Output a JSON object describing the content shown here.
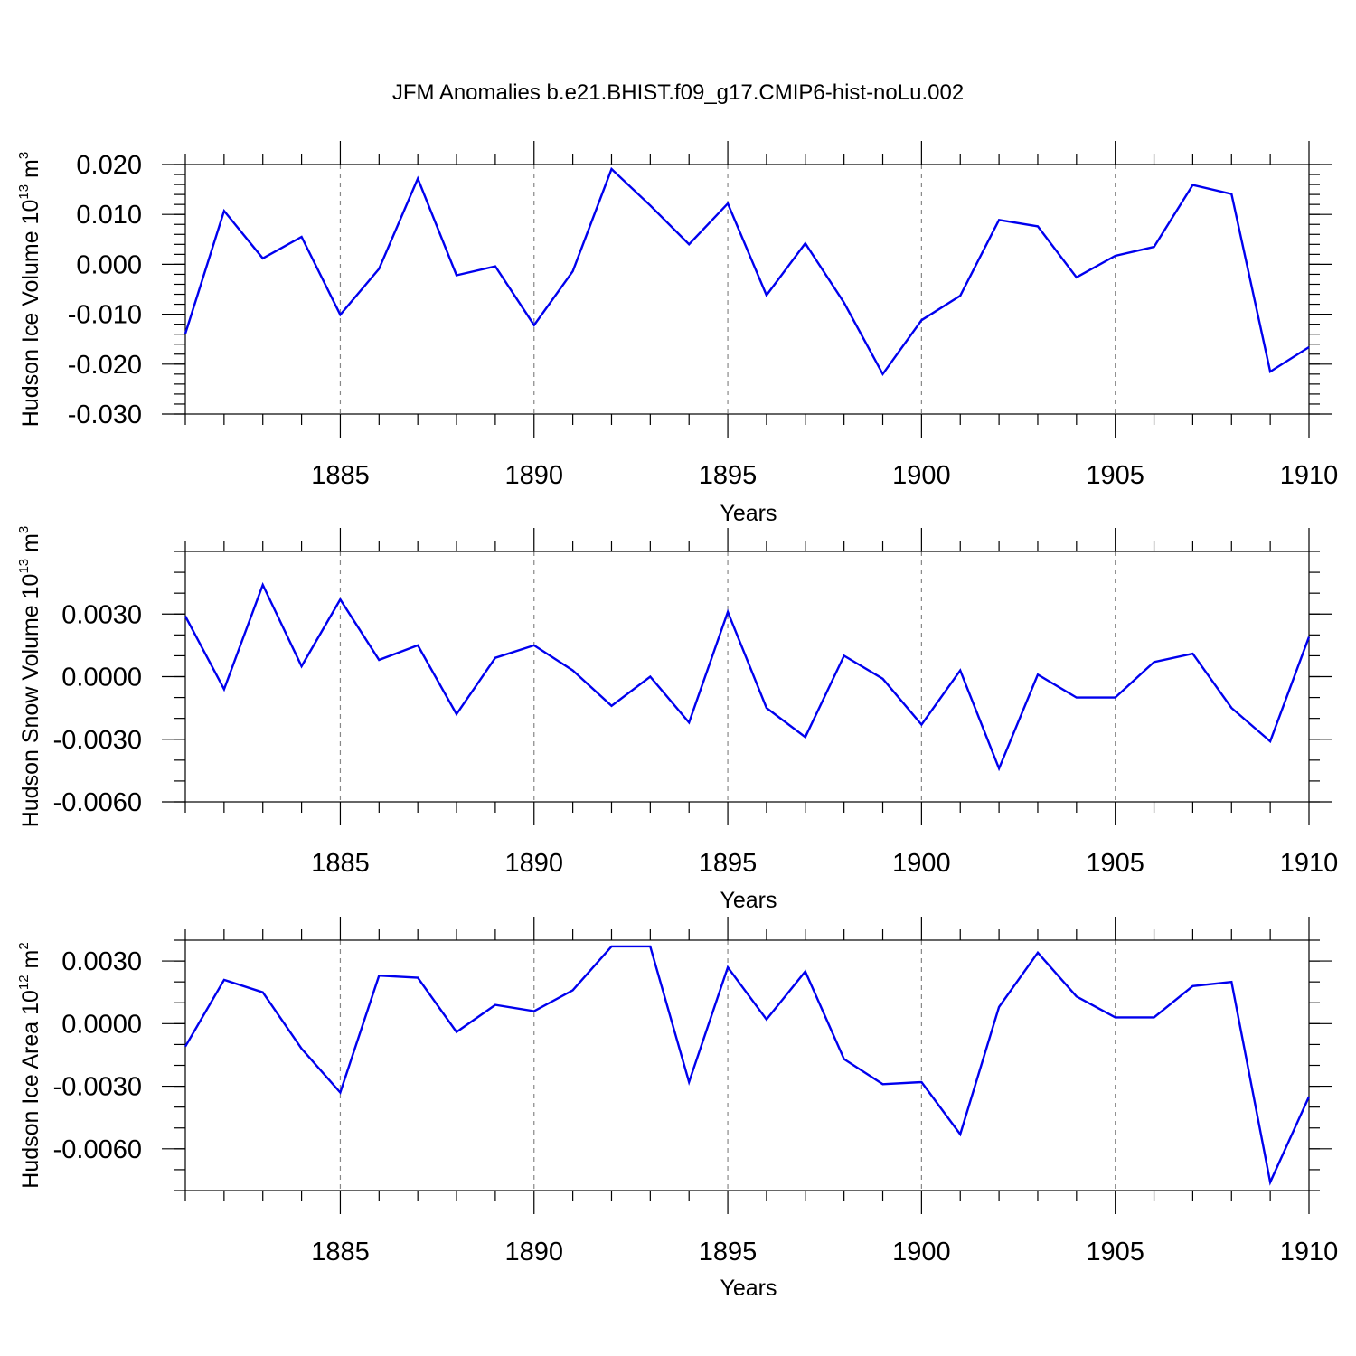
{
  "title": "JFM Anomalies b.e21.BHIST.f09_g17.CMIP6-hist-noLu.002",
  "line_color": "#0000ee",
  "chart_data": [
    {
      "type": "line",
      "ylabel": "Hudson Ice Volume 10",
      "ylabel_exp": "13",
      "ylabel_unit": " m",
      "ylabel_unit_exp": "3",
      "xlabel": "Years",
      "xlim": [
        1881,
        1910
      ],
      "ylim": [
        -0.03,
        0.02
      ],
      "yticks": [
        0.02,
        0.01,
        0.0,
        -0.01,
        -0.02,
        -0.03
      ],
      "ytick_labels": [
        "0.020",
        "0.010",
        "0.000",
        "-0.010",
        "-0.020",
        "-0.030"
      ],
      "yminor_step": 0.002,
      "xticks": [
        1885,
        1890,
        1895,
        1900,
        1905,
        1910
      ],
      "xtick_labels": [
        "1885",
        "1890",
        "1895",
        "1900",
        "1905",
        "1910"
      ],
      "grid": "vertical dashed at major x ticks",
      "x": [
        1881,
        1882,
        1883,
        1884,
        1885,
        1886,
        1887,
        1888,
        1889,
        1890,
        1891,
        1892,
        1893,
        1894,
        1895,
        1896,
        1897,
        1898,
        1899,
        1900,
        1901,
        1902,
        1903,
        1904,
        1905,
        1906,
        1907,
        1908,
        1909,
        1910
      ],
      "y": [
        -0.0139,
        0.0107,
        0.0012,
        0.0055,
        -0.0101,
        -0.0009,
        0.0172,
        -0.0022,
        -0.0004,
        -0.0122,
        -0.0014,
        0.0191,
        0.0118,
        0.004,
        0.0122,
        -0.0062,
        0.0042,
        -0.0077,
        -0.022,
        -0.0112,
        -0.0063,
        0.0089,
        0.0076,
        -0.0026,
        0.0017,
        0.0035,
        0.0159,
        0.0141,
        -0.0215,
        -0.0166
      ]
    },
    {
      "type": "line",
      "ylabel": "Hudson Snow Volume 10",
      "ylabel_exp": "13",
      "ylabel_unit": " m",
      "ylabel_unit_exp": "3",
      "xlabel": "Years",
      "xlim": [
        1881,
        1910
      ],
      "ylim": [
        -0.006,
        0.006
      ],
      "yticks": [
        0.003,
        0.0,
        -0.003,
        -0.006
      ],
      "ytick_labels": [
        "0.0030",
        "0.0000",
        "-0.0030",
        "-0.0060"
      ],
      "yminor_step": 0.001,
      "xticks": [
        1885,
        1890,
        1895,
        1900,
        1905,
        1910
      ],
      "xtick_labels": [
        "1885",
        "1890",
        "1895",
        "1900",
        "1905",
        "1910"
      ],
      "grid": "vertical dashed at major x ticks",
      "x": [
        1881,
        1882,
        1883,
        1884,
        1885,
        1886,
        1887,
        1888,
        1889,
        1890,
        1891,
        1892,
        1893,
        1894,
        1895,
        1896,
        1897,
        1898,
        1899,
        1900,
        1901,
        1902,
        1903,
        1904,
        1905,
        1906,
        1907,
        1908,
        1909,
        1910
      ],
      "y": [
        0.0029,
        -0.0006,
        0.0044,
        0.0005,
        0.0037,
        0.0008,
        0.0015,
        -0.0018,
        0.0009,
        0.0015,
        0.0003,
        -0.0014,
        -0.0,
        -0.0022,
        0.0031,
        -0.0015,
        -0.0029,
        0.001,
        -0.0001,
        -0.0023,
        0.0003,
        -0.0044,
        0.0001,
        -0.001,
        -0.001,
        0.0007,
        0.0011,
        -0.0015,
        -0.0031,
        0.0019
      ]
    },
    {
      "type": "line",
      "ylabel": "Hudson Ice Area 10",
      "ylabel_exp": "12",
      "ylabel_unit": " m",
      "ylabel_unit_exp": "2",
      "xlabel": "Years",
      "xlim": [
        1881,
        1910
      ],
      "ylim": [
        -0.008,
        0.004
      ],
      "yticks": [
        0.003,
        0.0,
        -0.003,
        -0.006
      ],
      "ytick_labels": [
        "0.0030",
        "0.0000",
        "-0.0030",
        "-0.0060"
      ],
      "yminor_step": 0.001,
      "xticks": [
        1885,
        1890,
        1895,
        1900,
        1905,
        1910
      ],
      "xtick_labels": [
        "1885",
        "1890",
        "1895",
        "1900",
        "1905",
        "1910"
      ],
      "grid": "vertical dashed at major x ticks",
      "x": [
        1881,
        1882,
        1883,
        1884,
        1885,
        1886,
        1887,
        1888,
        1889,
        1890,
        1891,
        1892,
        1893,
        1894,
        1895,
        1896,
        1897,
        1898,
        1899,
        1900,
        1901,
        1902,
        1903,
        1904,
        1905,
        1906,
        1907,
        1908,
        1909,
        1910
      ],
      "y": [
        -0.0011,
        0.0021,
        0.0015,
        -0.0012,
        -0.0033,
        0.0023,
        0.0022,
        -0.0004,
        0.0009,
        0.0006,
        0.0016,
        0.0037,
        0.0037,
        -0.0028,
        0.0027,
        0.0002,
        0.0025,
        -0.0017,
        -0.0029,
        -0.0028,
        -0.0053,
        0.0008,
        0.0034,
        0.0013,
        0.0003,
        0.0003,
        0.0018,
        0.002,
        -0.0076,
        -0.0035
      ]
    }
  ]
}
